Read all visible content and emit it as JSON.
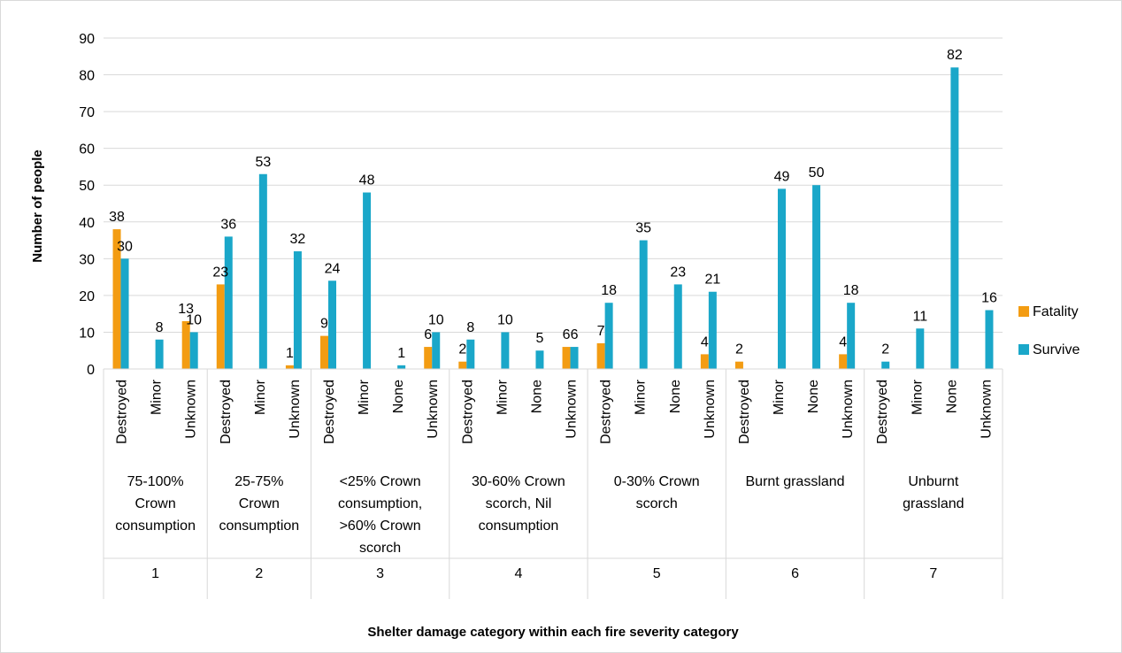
{
  "chart_data": {
    "type": "bar",
    "title": "",
    "xlabel": "Shelter damage category within each fire severity category",
    "ylabel": "Number of people",
    "ylim": [
      0,
      90
    ],
    "yticks": [
      0,
      10,
      20,
      30,
      40,
      50,
      60,
      70,
      80,
      90
    ],
    "grid": true,
    "legend_position": "right",
    "colors": {
      "Fatality": "#f39c12",
      "Survive": "#1aa7c9"
    },
    "groups": [
      {
        "number": "1",
        "label": [
          "75-100%",
          "Crown",
          "consumption"
        ],
        "categories": [
          "Destroyed",
          "Minor",
          "Unknown"
        ],
        "fatality": [
          38,
          null,
          13
        ],
        "survive": [
          30,
          8,
          10
        ]
      },
      {
        "number": "2",
        "label": [
          "25-75%",
          "Crown",
          "consumption"
        ],
        "categories": [
          "Destroyed",
          "Minor",
          "Unknown"
        ],
        "fatality": [
          23,
          null,
          1
        ],
        "survive": [
          36,
          53,
          32
        ]
      },
      {
        "number": "3",
        "label": [
          "<25% Crown",
          "consumption,",
          ">60% Crown",
          "scorch"
        ],
        "categories": [
          "Destroyed",
          "Minor",
          "None",
          "Unknown"
        ],
        "fatality": [
          9,
          null,
          null,
          6
        ],
        "survive": [
          24,
          48,
          1,
          10
        ]
      },
      {
        "number": "4",
        "label": [
          "30-60% Crown",
          "scorch, Nil",
          "consumption"
        ],
        "categories": [
          "Destroyed",
          "Minor",
          "None",
          "Unknown"
        ],
        "fatality": [
          2,
          null,
          null,
          6
        ],
        "survive": [
          8,
          10,
          5,
          6
        ]
      },
      {
        "number": "5",
        "label": [
          "0-30% Crown",
          "scorch"
        ],
        "categories": [
          "Destroyed",
          "Minor",
          "None",
          "Unknown"
        ],
        "fatality": [
          7,
          null,
          null,
          4
        ],
        "survive": [
          18,
          35,
          23,
          21
        ]
      },
      {
        "number": "6",
        "label": [
          "Burnt grassland"
        ],
        "categories": [
          "Destroyed",
          "Minor",
          "None",
          "Unknown"
        ],
        "fatality": [
          2,
          null,
          null,
          4
        ],
        "survive": [
          null,
          49,
          50,
          18
        ]
      },
      {
        "number": "7",
        "label": [
          "Unburnt",
          "grassland"
        ],
        "categories": [
          "Destroyed",
          "Minor",
          "None",
          "Unknown"
        ],
        "fatality": [
          null,
          null,
          null,
          null
        ],
        "survive": [
          2,
          11,
          82,
          16
        ]
      }
    ],
    "series": [
      {
        "name": "Fatality",
        "key": "fatality"
      },
      {
        "name": "Survive",
        "key": "survive"
      }
    ]
  }
}
